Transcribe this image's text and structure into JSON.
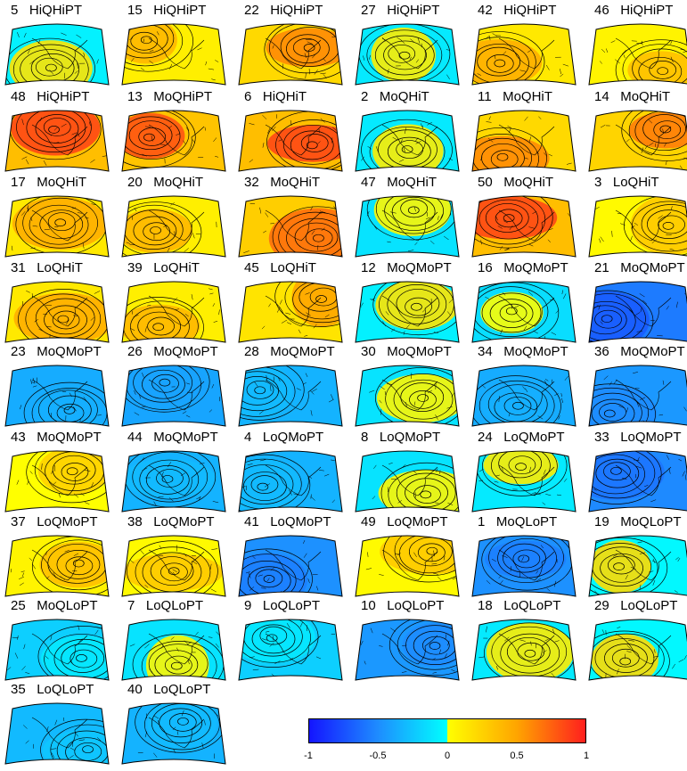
{
  "panels": [
    {
      "num": "5",
      "label": "HiQHiPT",
      "v": 0.15
    },
    {
      "num": "15",
      "label": "HiQHiPT",
      "v": 0.4
    },
    {
      "num": "22",
      "label": "HiQHiPT",
      "v": 0.6
    },
    {
      "num": "27",
      "label": "HiQHiPT",
      "v": 0.1
    },
    {
      "num": "42",
      "label": "HiQHiPT",
      "v": 0.45
    },
    {
      "num": "46",
      "label": "HiQHiPT",
      "v": 0.35
    },
    {
      "num": "48",
      "label": "HiQHiPT",
      "v": 0.85
    },
    {
      "num": "13",
      "label": "MoQHiPT",
      "v": 0.8
    },
    {
      "num": "6",
      "label": "HiQHiT",
      "v": 0.85
    },
    {
      "num": "2",
      "label": "MoQHiT",
      "v": 0.1
    },
    {
      "num": "11",
      "label": "MoQHiT",
      "v": 0.6
    },
    {
      "num": "14",
      "label": "MoQHiT",
      "v": 0.65
    },
    {
      "num": "17",
      "label": "MoQHiT",
      "v": 0.45
    },
    {
      "num": "20",
      "label": "MoQHiT",
      "v": 0.4
    },
    {
      "num": "32",
      "label": "MoQHiT",
      "v": 0.7
    },
    {
      "num": "47",
      "label": "MoQHiT",
      "v": 0.05
    },
    {
      "num": "50",
      "label": "MoQHiT",
      "v": 0.85
    },
    {
      "num": "3",
      "label": "LoQHiT",
      "v": 0.3
    },
    {
      "num": "31",
      "label": "LoQHiT",
      "v": 0.45
    },
    {
      "num": "39",
      "label": "LoQHiT",
      "v": 0.4
    },
    {
      "num": "45",
      "label": "LoQHiT",
      "v": 0.5
    },
    {
      "num": "12",
      "label": "MoQMoPT",
      "v": 0.15
    },
    {
      "num": "16",
      "label": "MoQMoPT",
      "v": 0.0
    },
    {
      "num": "21",
      "label": "MoQMoPT",
      "v": -0.7
    },
    {
      "num": "23",
      "label": "MoQMoPT",
      "v": -0.35
    },
    {
      "num": "26",
      "label": "MoQMoPT",
      "v": -0.4
    },
    {
      "num": "28",
      "label": "MoQMoPT",
      "v": -0.3
    },
    {
      "num": "30",
      "label": "MoQMoPT",
      "v": 0.05
    },
    {
      "num": "34",
      "label": "MoQMoPT",
      "v": -0.35
    },
    {
      "num": "36",
      "label": "MoQMoPT",
      "v": -0.5
    },
    {
      "num": "43",
      "label": "MoQMoPT",
      "v": 0.25
    },
    {
      "num": "44",
      "label": "MoQMoPT",
      "v": -0.3
    },
    {
      "num": "4",
      "label": "LoQMoPT",
      "v": -0.3
    },
    {
      "num": "8",
      "label": "LoQMoPT",
      "v": 0.05
    },
    {
      "num": "24",
      "label": "LoQMoPT",
      "v": 0.1
    },
    {
      "num": "33",
      "label": "LoQMoPT",
      "v": -0.6
    },
    {
      "num": "37",
      "label": "LoQMoPT",
      "v": 0.35
    },
    {
      "num": "38",
      "label": "LoQMoPT",
      "v": 0.3
    },
    {
      "num": "41",
      "label": "LoQMoPT",
      "v": -0.55
    },
    {
      "num": "49",
      "label": "LoQMoPT",
      "v": 0.3
    },
    {
      "num": "1",
      "label": "MoQLoPT",
      "v": -0.55
    },
    {
      "num": "19",
      "label": "MoQLoPT",
      "v": 0.2
    },
    {
      "num": "25",
      "label": "MoQLoPT",
      "v": -0.1
    },
    {
      "num": "7",
      "label": "LoQLoPT",
      "v": 0.05
    },
    {
      "num": "9",
      "label": "LoQLoPT",
      "v": -0.1
    },
    {
      "num": "10",
      "label": "LoQLoPT",
      "v": -0.5
    },
    {
      "num": "18",
      "label": "LoQLoPT",
      "v": 0.1
    },
    {
      "num": "29",
      "label": "LoQLoPT",
      "v": 0.2
    },
    {
      "num": "35",
      "label": "LoQLoPT",
      "v": -0.25
    },
    {
      "num": "40",
      "label": "LoQLoPT",
      "v": -0.3
    }
  ],
  "colorbar": {
    "min": -1,
    "max": 1,
    "ticks": [
      {
        "value": -1,
        "label": "-1"
      },
      {
        "value": -0.5,
        "label": "-0.5"
      },
      {
        "value": 0,
        "label": "0"
      },
      {
        "value": 0.5,
        "label": "0.5"
      },
      {
        "value": 1,
        "label": "1"
      }
    ],
    "colors": {
      "neg_deep": "#1414ff",
      "neg_mid": "#1e8cff",
      "neg_light": "#00ffff",
      "pos_light": "#ffff00",
      "pos_mid": "#ffa500",
      "pos_deep": "#ff1e1e"
    }
  }
}
